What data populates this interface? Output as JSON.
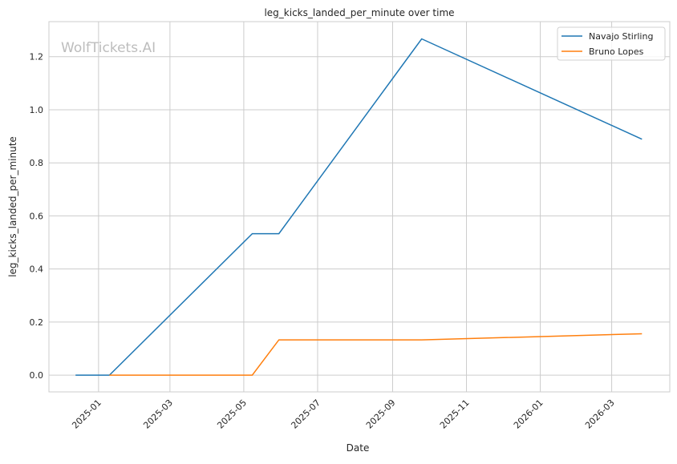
{
  "chart_data": {
    "type": "line",
    "title": "leg_kicks_landed_per_minute over time",
    "xlabel": "Date",
    "ylabel": "leg_kicks_landed_per_minute",
    "watermark": "WolfTickets.AI",
    "xlim": [
      "2024-11-21",
      "2026-04-18"
    ],
    "ylim": [
      -0.063,
      1.332
    ],
    "x_ticks": [
      "2025-01",
      "2025-03",
      "2025-05",
      "2025-07",
      "2025-09",
      "2025-11",
      "2026-01",
      "2026-03"
    ],
    "y_ticks": [
      "0.0",
      "0.2",
      "0.4",
      "0.6",
      "0.8",
      "1.0",
      "1.2"
    ],
    "grid": true,
    "legend_position": "top-right",
    "series": [
      {
        "name": "Navajo Stirling",
        "color": "#1f77b4",
        "x": [
          "2024-12-13",
          "2025-01-10",
          "2025-05-08",
          "2025-05-30",
          "2025-09-25",
          "2026-03-26"
        ],
        "y": [
          0.0,
          0.0,
          0.533,
          0.533,
          1.267,
          0.889
        ]
      },
      {
        "name": "Bruno Lopes",
        "color": "#ff7f0e",
        "x": [
          "2025-01-10",
          "2025-05-08",
          "2025-05-30",
          "2025-09-25",
          "2026-03-26"
        ],
        "y": [
          0.0,
          0.0,
          0.133,
          0.133,
          0.156
        ]
      }
    ]
  }
}
